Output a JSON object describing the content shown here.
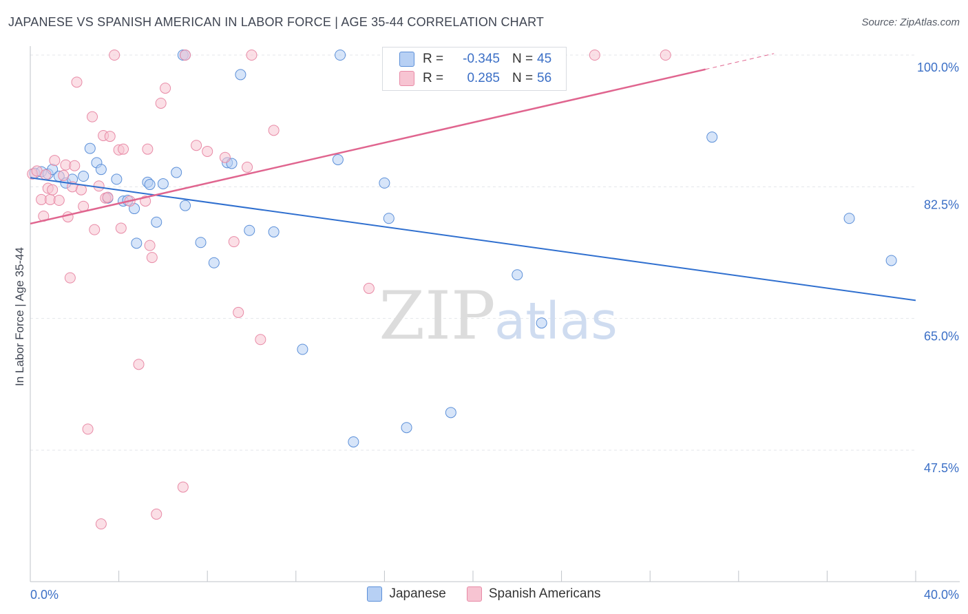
{
  "header": {
    "title": "JAPANESE VS SPANISH AMERICAN IN LABOR FORCE | AGE 35-44 CORRELATION CHART",
    "source": "Source: ZipAtlas.com"
  },
  "colors": {
    "blue_fill": "#b7d0f4",
    "blue_stroke": "#5b8fd8",
    "blue_line": "#2f6fcf",
    "pink_fill": "#f7c4d2",
    "pink_stroke": "#e88aa6",
    "pink_line": "#e0658f",
    "axis_label": "#3b6fc6",
    "grid": "#e3e6ea"
  },
  "stats": {
    "rows": [
      {
        "r_label": "R =",
        "r_value": "-0.345",
        "n_label": "N =",
        "n_value": "45",
        "color": "#b7d0f4"
      },
      {
        "r_label": "R =",
        "r_value": "0.285",
        "n_label": "N =",
        "n_value": "56",
        "color": "#f7c4d2"
      }
    ]
  },
  "legend": {
    "items": [
      {
        "label": "Japanese",
        "color": "#b7d0f4"
      },
      {
        "label": "Spanish Americans",
        "color": "#f7c4d2"
      }
    ]
  },
  "chart_data": {
    "type": "scatter",
    "title": "JAPANESE VS SPANISH AMERICAN IN LABOR FORCE | AGE 35-44 CORRELATION CHART",
    "ylabel": "In Labor Force | Age 35-44",
    "xlabel": "",
    "xlim": [
      0,
      40
    ],
    "ylim": [
      31,
      102
    ],
    "x_tick_labels": [
      "0.0%",
      "40.0%"
    ],
    "y_ticks": [
      47.5,
      65.0,
      82.5,
      100.0
    ],
    "y_tick_labels": [
      "47.5%",
      "65.0%",
      "82.5%",
      "100.0%"
    ],
    "grid": true,
    "legend_position": "bottom",
    "watermark": {
      "zip": "ZIP",
      "atlas": "atlas"
    },
    "series": [
      {
        "name": "Japanese",
        "trend": {
          "x": [
            0,
            40
          ],
          "y": [
            83.7,
            67.4
          ]
        },
        "points": [
          [
            0.2,
            84.3
          ],
          [
            0.5,
            84.5
          ],
          [
            0.8,
            84.2
          ],
          [
            1.0,
            84.8
          ],
          [
            1.3,
            83.9
          ],
          [
            1.6,
            83.0
          ],
          [
            1.9,
            83.5
          ],
          [
            2.4,
            83.9
          ],
          [
            2.7,
            87.6
          ],
          [
            3.0,
            85.7
          ],
          [
            3.2,
            84.8
          ],
          [
            3.5,
            81.0
          ],
          [
            3.9,
            83.5
          ],
          [
            4.2,
            80.6
          ],
          [
            4.4,
            80.7
          ],
          [
            4.7,
            79.6
          ],
          [
            4.8,
            75.0
          ],
          [
            5.3,
            83.1
          ],
          [
            5.4,
            82.8
          ],
          [
            5.7,
            77.8
          ],
          [
            6.0,
            82.9
          ],
          [
            6.6,
            84.4
          ],
          [
            7.0,
            80.0
          ],
          [
            7.7,
            75.1
          ],
          [
            8.3,
            72.4
          ],
          [
            8.9,
            85.7
          ],
          [
            9.1,
            85.6
          ],
          [
            9.5,
            97.4
          ],
          [
            9.9,
            76.7
          ],
          [
            11.0,
            76.5
          ],
          [
            12.3,
            60.9
          ],
          [
            13.9,
            86.1
          ],
          [
            14.0,
            100.0
          ],
          [
            14.6,
            48.6
          ],
          [
            16.0,
            83.0
          ],
          [
            16.2,
            78.3
          ],
          [
            17.0,
            50.5
          ],
          [
            19.0,
            52.5
          ],
          [
            22.0,
            70.8
          ],
          [
            23.1,
            64.4
          ],
          [
            30.8,
            89.1
          ],
          [
            37.0,
            78.3
          ],
          [
            38.9,
            72.7
          ],
          [
            6.9,
            100.0
          ],
          [
            7.0,
            100.0
          ]
        ]
      },
      {
        "name": "Spanish Americans",
        "trend": {
          "x": [
            0,
            30.5,
            33.6
          ],
          "y": [
            77.6,
            98.1,
            100.2
          ]
        },
        "points": [
          [
            0.1,
            84.2
          ],
          [
            0.3,
            84.6
          ],
          [
            0.5,
            80.8
          ],
          [
            0.6,
            78.6
          ],
          [
            0.7,
            84.1
          ],
          [
            0.8,
            82.3
          ],
          [
            0.9,
            80.8
          ],
          [
            1.0,
            82.1
          ],
          [
            1.1,
            86.0
          ],
          [
            1.3,
            80.7
          ],
          [
            1.5,
            84.0
          ],
          [
            1.6,
            85.4
          ],
          [
            1.7,
            78.5
          ],
          [
            1.8,
            70.4
          ],
          [
            1.9,
            82.5
          ],
          [
            2.0,
            85.3
          ],
          [
            2.1,
            96.4
          ],
          [
            2.3,
            82.1
          ],
          [
            2.4,
            79.9
          ],
          [
            2.6,
            50.3
          ],
          [
            2.8,
            91.8
          ],
          [
            2.9,
            76.8
          ],
          [
            3.1,
            82.6
          ],
          [
            3.2,
            37.7
          ],
          [
            3.3,
            89.3
          ],
          [
            3.4,
            81.0
          ],
          [
            3.5,
            81.1
          ],
          [
            3.6,
            89.2
          ],
          [
            3.8,
            100.0
          ],
          [
            4.0,
            87.4
          ],
          [
            4.1,
            77.0
          ],
          [
            4.2,
            87.5
          ],
          [
            4.5,
            80.6
          ],
          [
            4.9,
            58.9
          ],
          [
            5.2,
            80.6
          ],
          [
            5.3,
            87.5
          ],
          [
            5.4,
            74.7
          ],
          [
            5.5,
            73.1
          ],
          [
            5.7,
            39.0
          ],
          [
            5.9,
            93.6
          ],
          [
            6.1,
            95.6
          ],
          [
            6.9,
            42.6
          ],
          [
            7.0,
            100.0
          ],
          [
            7.5,
            88.0
          ],
          [
            8.0,
            87.2
          ],
          [
            8.8,
            86.4
          ],
          [
            9.2,
            75.2
          ],
          [
            9.4,
            65.8
          ],
          [
            9.8,
            85.1
          ],
          [
            10.0,
            100.0
          ],
          [
            10.4,
            62.2
          ],
          [
            11.0,
            90.0
          ],
          [
            15.3,
            69.0
          ],
          [
            19.6,
            100.0
          ],
          [
            25.5,
            100.0
          ],
          [
            28.7,
            100.0
          ]
        ]
      }
    ]
  }
}
